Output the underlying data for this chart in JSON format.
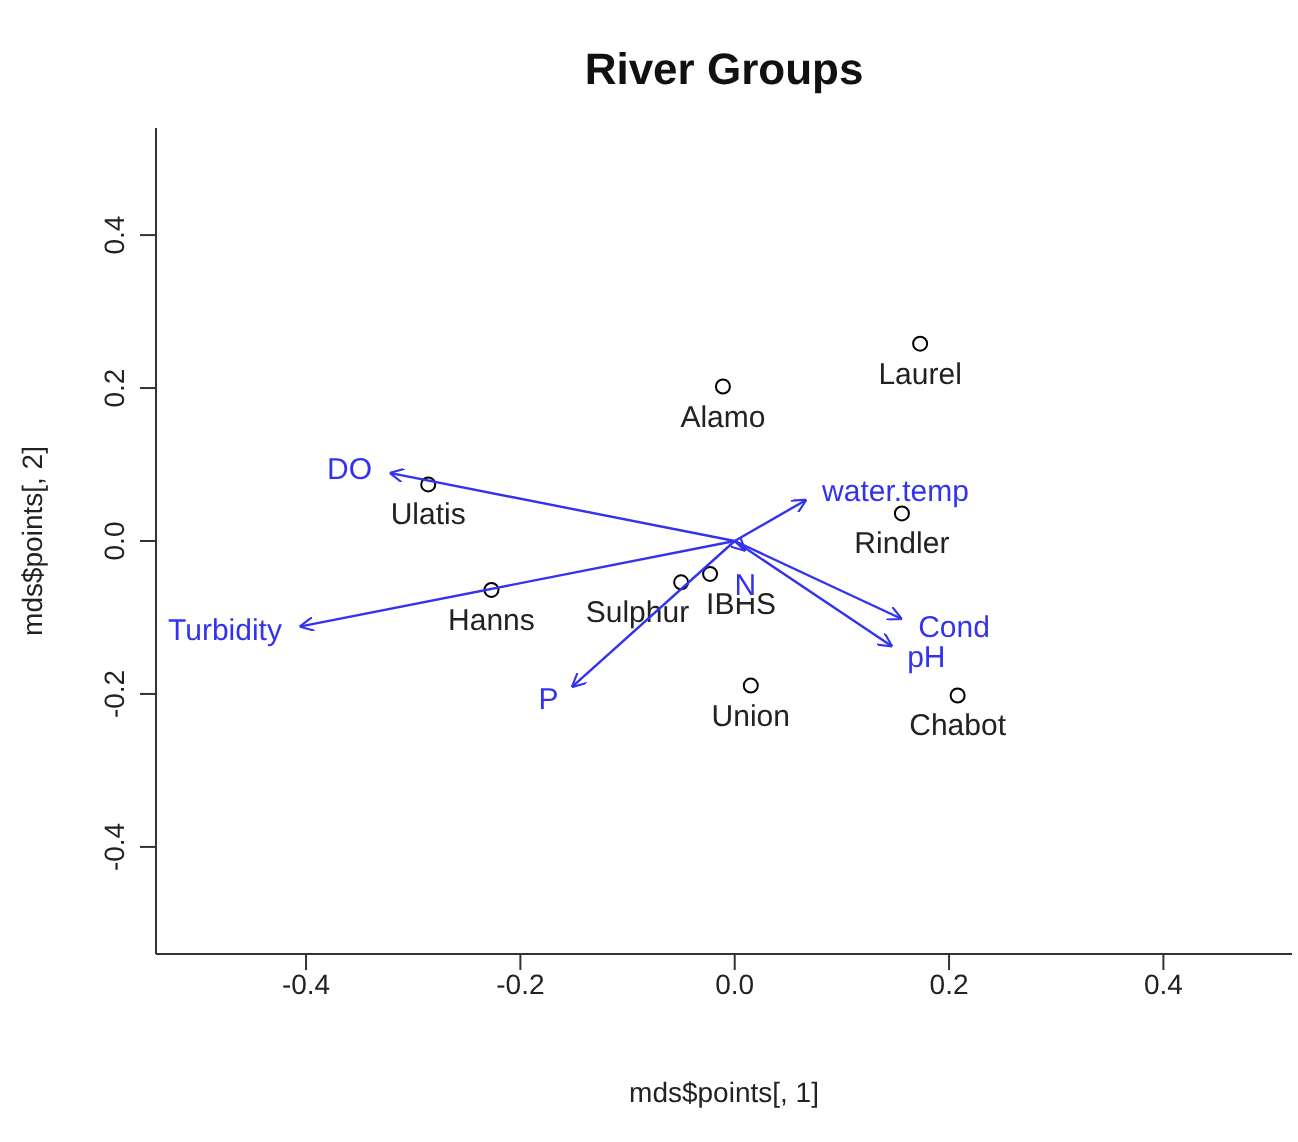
{
  "chart_data": {
    "type": "scatter",
    "title": "River Groups",
    "xlabel": "mds$points[, 1]",
    "ylabel": "mds$points[, 2]",
    "xlim": [
      -0.54,
      0.52
    ],
    "ylim": [
      -0.54,
      0.54
    ],
    "xticks": [
      -0.4,
      -0.2,
      {
        "value": 0,
        "label": "0.0"
      },
      0.2,
      0.4
    ],
    "yticks": [
      -0.4,
      -0.2,
      {
        "value": 0,
        "label": "0.0"
      },
      0.2,
      0.4
    ],
    "marker": "circle",
    "legend": false,
    "series": [
      {
        "name": "Alamo",
        "color": "#000000",
        "x": [
          -0.011
        ],
        "values": [
          0.202
        ]
      },
      {
        "name": "Laurel",
        "color": "#000000",
        "x": [
          0.173
        ],
        "values": [
          0.258
        ]
      },
      {
        "name": "Ulatis",
        "color": "#000000",
        "x": [
          -0.286
        ],
        "values": [
          0.074
        ]
      },
      {
        "name": "Rindler",
        "color": "#000000",
        "x": [
          0.156
        ],
        "values": [
          0.036
        ]
      },
      {
        "name": "Hanns",
        "color": "#000000",
        "x": [
          -0.227
        ],
        "values": [
          -0.064
        ]
      },
      {
        "name": "Sulphur",
        "color": "#000000",
        "x": [
          -0.05
        ],
        "values": [
          -0.054
        ]
      },
      {
        "name": "IBHS",
        "color": "#000000",
        "x": [
          -0.023
        ],
        "values": [
          -0.043
        ]
      },
      {
        "name": "Union",
        "color": "#000000",
        "x": [
          0.015
        ],
        "values": [
          -0.189
        ]
      },
      {
        "name": "Chabot",
        "color": "#000000",
        "x": [
          0.208
        ],
        "values": [
          -0.202
        ]
      },
      {
        "name": "DO",
        "type": "line",
        "marker": "none",
        "color": "#3333ee",
        "x": [
          0,
          -0.322
        ],
        "values": [
          0,
          0.089
        ]
      },
      {
        "name": "Turbidity",
        "type": "line",
        "marker": "none",
        "color": "#3333ee",
        "x": [
          0,
          -0.406
        ],
        "values": [
          0,
          -0.112
        ]
      },
      {
        "name": "P",
        "type": "line",
        "marker": "none",
        "color": "#3333ee",
        "x": [
          0,
          -0.152
        ],
        "values": [
          0,
          -0.191
        ]
      },
      {
        "name": "water.temp",
        "type": "line",
        "marker": "none",
        "color": "#3333ee",
        "x": [
          0,
          0.067
        ],
        "values": [
          0,
          0.054
        ]
      },
      {
        "name": "N",
        "type": "line",
        "marker": "none",
        "color": "#3333ee",
        "x": [
          0,
          0.01
        ],
        "values": [
          0,
          -0.013
        ]
      },
      {
        "name": "Cond",
        "type": "line",
        "marker": "none",
        "color": "#3333ee",
        "x": [
          0,
          0.156
        ],
        "values": [
          0,
          -0.102
        ]
      },
      {
        "name": "pH",
        "type": "line",
        "marker": "none",
        "color": "#3333ee",
        "x": [
          0,
          0.147
        ],
        "values": [
          0,
          -0.138
        ]
      }
    ]
  }
}
